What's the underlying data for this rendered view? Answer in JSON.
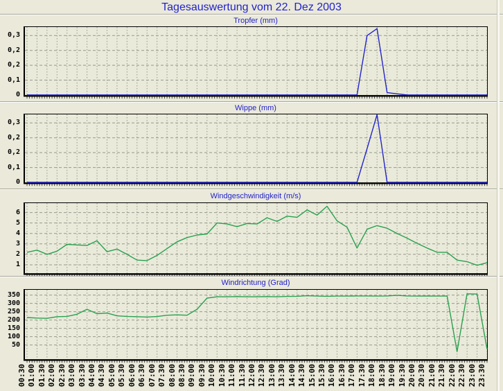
{
  "window": {
    "title": "Tagesauswertung vom 22. Dez 2003"
  },
  "theme": {
    "page_bg": "#EAE9DA",
    "plot_bg": "#E9EAD9",
    "title_color": "#2222CC",
    "grid_color": "#98988C",
    "frame_color": "#000000",
    "tick_label_color": "#000000",
    "line_blue": "#2222CC",
    "line_green": "#28A050"
  },
  "x_axis": {
    "tick_labels": [
      "00:30",
      "01:00",
      "01:30",
      "02:00",
      "02:30",
      "03:00",
      "03:30",
      "04:00",
      "04:30",
      "05:00",
      "05:30",
      "06:00",
      "06:30",
      "07:00",
      "07:30",
      "08:00",
      "08:30",
      "09:00",
      "09:30",
      "10:00",
      "10:30",
      "11:00",
      "11:30",
      "12:00",
      "12:30",
      "13:00",
      "13:30",
      "14:00",
      "14:30",
      "15:00",
      "15:30",
      "16:00",
      "16:30",
      "17:00",
      "17:30",
      "18:00",
      "18:30",
      "19:00",
      "19:30",
      "20:00",
      "20:30",
      "21:00",
      "21:30",
      "22:00",
      "22:30",
      "23:00",
      "23:30"
    ]
  },
  "chart_data": [
    {
      "type": "line",
      "title": "Tropfer (mm)",
      "ylabel": "mm",
      "color": "line_blue",
      "ymin": 0,
      "ymax": 0.343,
      "grid": true,
      "y_ticks": [
        {
          "value": 0.3,
          "label": "0,3"
        },
        {
          "value": 0.225,
          "label": "0,2"
        },
        {
          "value": 0.15,
          "label": "0,2"
        },
        {
          "value": 0.075,
          "label": "0,1"
        },
        {
          "value": 0,
          "label": "0"
        }
      ],
      "values": [
        0,
        0,
        0,
        0,
        0,
        0,
        0,
        0,
        0,
        0,
        0,
        0,
        0,
        0,
        0,
        0,
        0,
        0,
        0,
        0,
        0,
        0,
        0,
        0,
        0,
        0,
        0,
        0,
        0,
        0,
        0,
        0,
        0,
        0,
        0.3,
        0.335,
        0.012,
        0.006,
        0,
        0,
        0,
        0,
        0,
        0,
        0,
        0,
        0
      ]
    },
    {
      "type": "line",
      "title": "Wippe (mm)",
      "ylabel": "mm",
      "color": "line_blue",
      "ymin": 0,
      "ymax": 0.343,
      "grid": true,
      "y_ticks": [
        {
          "value": 0.3,
          "label": "0,3"
        },
        {
          "value": 0.225,
          "label": "0,2"
        },
        {
          "value": 0.15,
          "label": "0,2"
        },
        {
          "value": 0.075,
          "label": "0,1"
        },
        {
          "value": 0,
          "label": "0"
        }
      ],
      "values": [
        0,
        0,
        0,
        0,
        0,
        0,
        0,
        0,
        0,
        0,
        0,
        0,
        0,
        0,
        0,
        0,
        0,
        0,
        0,
        0,
        0,
        0,
        0,
        0,
        0,
        0,
        0,
        0,
        0,
        0,
        0,
        0,
        0,
        0,
        0.17,
        0.342,
        0,
        0,
        0,
        0,
        0,
        0,
        0,
        0,
        0,
        0,
        0
      ]
    },
    {
      "type": "line",
      "title": "Windgeschwindigkeit (m/s)",
      "ylabel": "m/s",
      "color": "line_green",
      "ymin": 0.2,
      "ymax": 6.9,
      "grid": true,
      "y_ticks": [
        {
          "value": 6,
          "label": "6"
        },
        {
          "value": 5,
          "label": "5"
        },
        {
          "value": 4,
          "label": "4"
        },
        {
          "value": 3,
          "label": "3"
        },
        {
          "value": 2,
          "label": "2"
        },
        {
          "value": 1,
          "label": "1"
        }
      ],
      "values": [
        2.2,
        2.4,
        2.0,
        2.3,
        2.95,
        2.9,
        2.85,
        3.3,
        2.25,
        2.5,
        2.0,
        1.45,
        1.4,
        1.9,
        2.55,
        3.2,
        3.6,
        3.85,
        3.95,
        5.0,
        4.9,
        4.65,
        4.95,
        4.9,
        5.5,
        5.15,
        5.65,
        5.55,
        6.25,
        5.75,
        6.6,
        5.2,
        4.6,
        2.6,
        4.4,
        4.75,
        4.5,
        4.0,
        3.55,
        3.05,
        2.6,
        2.2,
        2.2,
        1.45,
        1.3,
        0.95,
        1.2
      ]
    },
    {
      "type": "line",
      "title": "Windrichtung (Grad)",
      "ylabel": "Grad",
      "color": "line_green",
      "ymin": -35,
      "ymax": 382,
      "grid": true,
      "y_ticks": [
        {
          "value": 350,
          "label": "350"
        },
        {
          "value": 300,
          "label": "300"
        },
        {
          "value": 250,
          "label": "250"
        },
        {
          "value": 200,
          "label": "200"
        },
        {
          "value": 150,
          "label": "150"
        },
        {
          "value": 100,
          "label": "100"
        },
        {
          "value": 50,
          "label": "50"
        }
      ],
      "values": [
        215,
        212,
        210,
        220,
        222,
        235,
        265,
        238,
        242,
        225,
        222,
        220,
        218,
        221,
        229,
        231,
        229,
        265,
        332,
        340,
        340,
        341,
        340,
        340,
        341,
        340,
        342,
        343,
        346,
        344,
        343,
        344,
        344,
        345,
        345,
        344,
        345,
        349,
        345,
        344,
        345,
        344,
        345,
        10,
        358,
        356,
        25
      ]
    }
  ]
}
